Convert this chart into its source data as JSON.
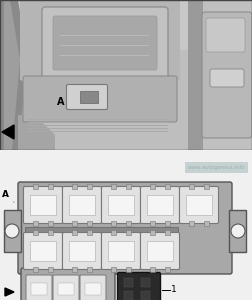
{
  "watermark": "www.autogenius.info",
  "board_color": "#a8a8a8",
  "board_edge": "#555555",
  "fuse_fill": "#e2e2e2",
  "fuse_edge": "#777777",
  "fuse_inner": "#f5f5f5",
  "relay_fill": "#2a2a2a",
  "relay_edge": "#111111",
  "tab_fill": "#b8b8b8",
  "bg_bottom": "#eeeeee",
  "bg_top": "#cccccc"
}
